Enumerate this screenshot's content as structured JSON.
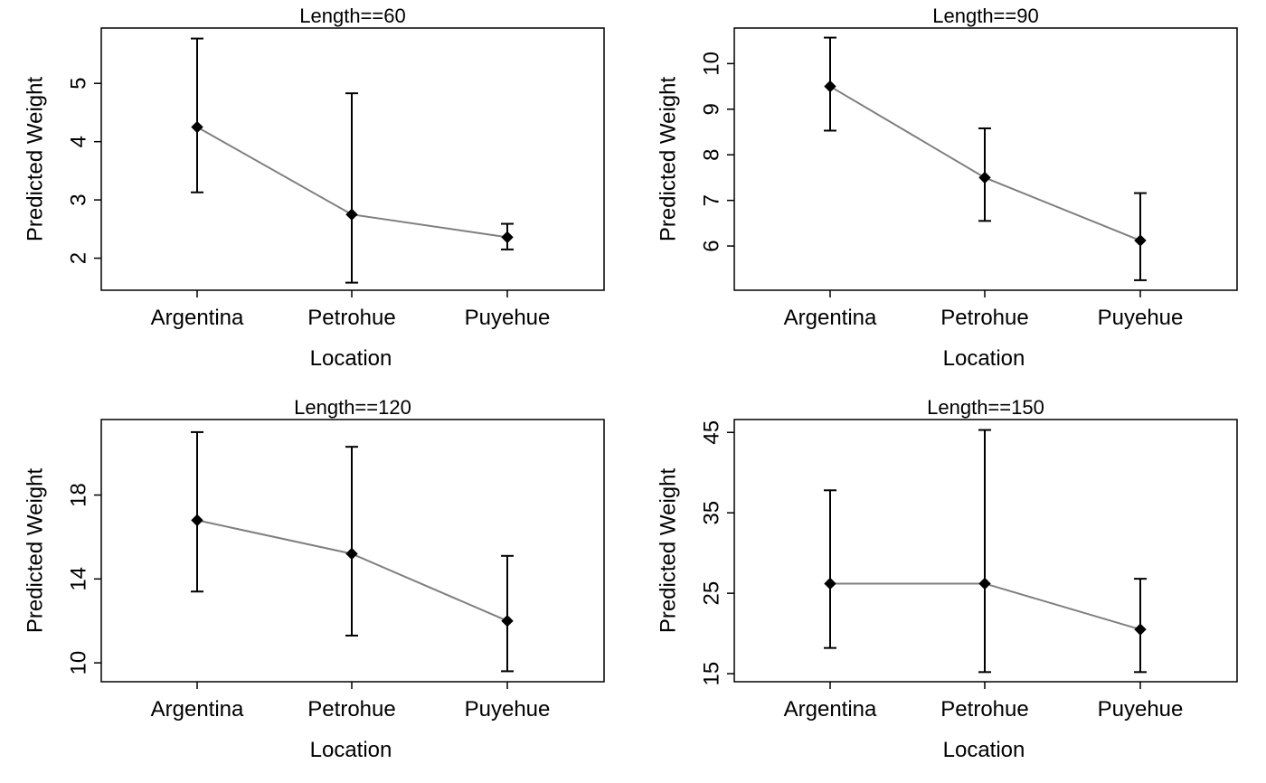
{
  "chart_data": [
    {
      "type": "line",
      "title": "Length==60",
      "xlabel": "Location",
      "ylabel": "Predicted Weight",
      "categories": [
        "Argentina",
        "Petrohue",
        "Puyehue"
      ],
      "values": [
        4.25,
        2.75,
        2.36
      ],
      "lower": [
        3.13,
        1.58,
        2.15
      ],
      "upper": [
        5.77,
        4.83,
        2.59
      ],
      "yticks": [
        2,
        3,
        4,
        5
      ],
      "ylim": [
        1.45,
        5.95
      ],
      "colors": {
        "line": "#7f7f7f",
        "errorbar": "#000000",
        "point": "#000000"
      }
    },
    {
      "type": "line",
      "title": "Length==90",
      "xlabel": "Location",
      "ylabel": "Predicted Weight",
      "categories": [
        "Argentina",
        "Petrohue",
        "Puyehue"
      ],
      "values": [
        9.5,
        7.5,
        6.12
      ],
      "lower": [
        8.53,
        6.55,
        5.25
      ],
      "upper": [
        10.57,
        8.58,
        7.16
      ],
      "yticks": [
        6,
        7,
        8,
        9,
        10
      ],
      "ylim": [
        5.03,
        10.78
      ],
      "colors": {
        "line": "#7f7f7f",
        "errorbar": "#000000",
        "point": "#000000"
      }
    },
    {
      "type": "line",
      "title": "Length==120",
      "xlabel": "Location",
      "ylabel": "Predicted Weight",
      "categories": [
        "Argentina",
        "Petrohue",
        "Puyehue"
      ],
      "values": [
        16.8,
        15.2,
        12.0
      ],
      "lower": [
        13.4,
        11.3,
        9.6
      ],
      "upper": [
        21.0,
        20.3,
        15.1
      ],
      "yticks": [
        10,
        14,
        18
      ],
      "ylim": [
        9.1,
        21.6
      ],
      "colors": {
        "line": "#7f7f7f",
        "errorbar": "#000000",
        "point": "#000000"
      }
    },
    {
      "type": "line",
      "title": "Length==150",
      "xlabel": "Location",
      "ylabel": "Predicted Weight",
      "categories": [
        "Argentina",
        "Petrohue",
        "Puyehue"
      ],
      "values": [
        26.2,
        26.2,
        20.5
      ],
      "lower": [
        18.2,
        15.2,
        15.2
      ],
      "upper": [
        37.8,
        45.3,
        26.8
      ],
      "yticks": [
        15,
        25,
        35,
        45
      ],
      "ylim": [
        14.0,
        46.6
      ],
      "colors": {
        "line": "#7f7f7f",
        "errorbar": "#000000",
        "point": "#000000"
      }
    }
  ]
}
